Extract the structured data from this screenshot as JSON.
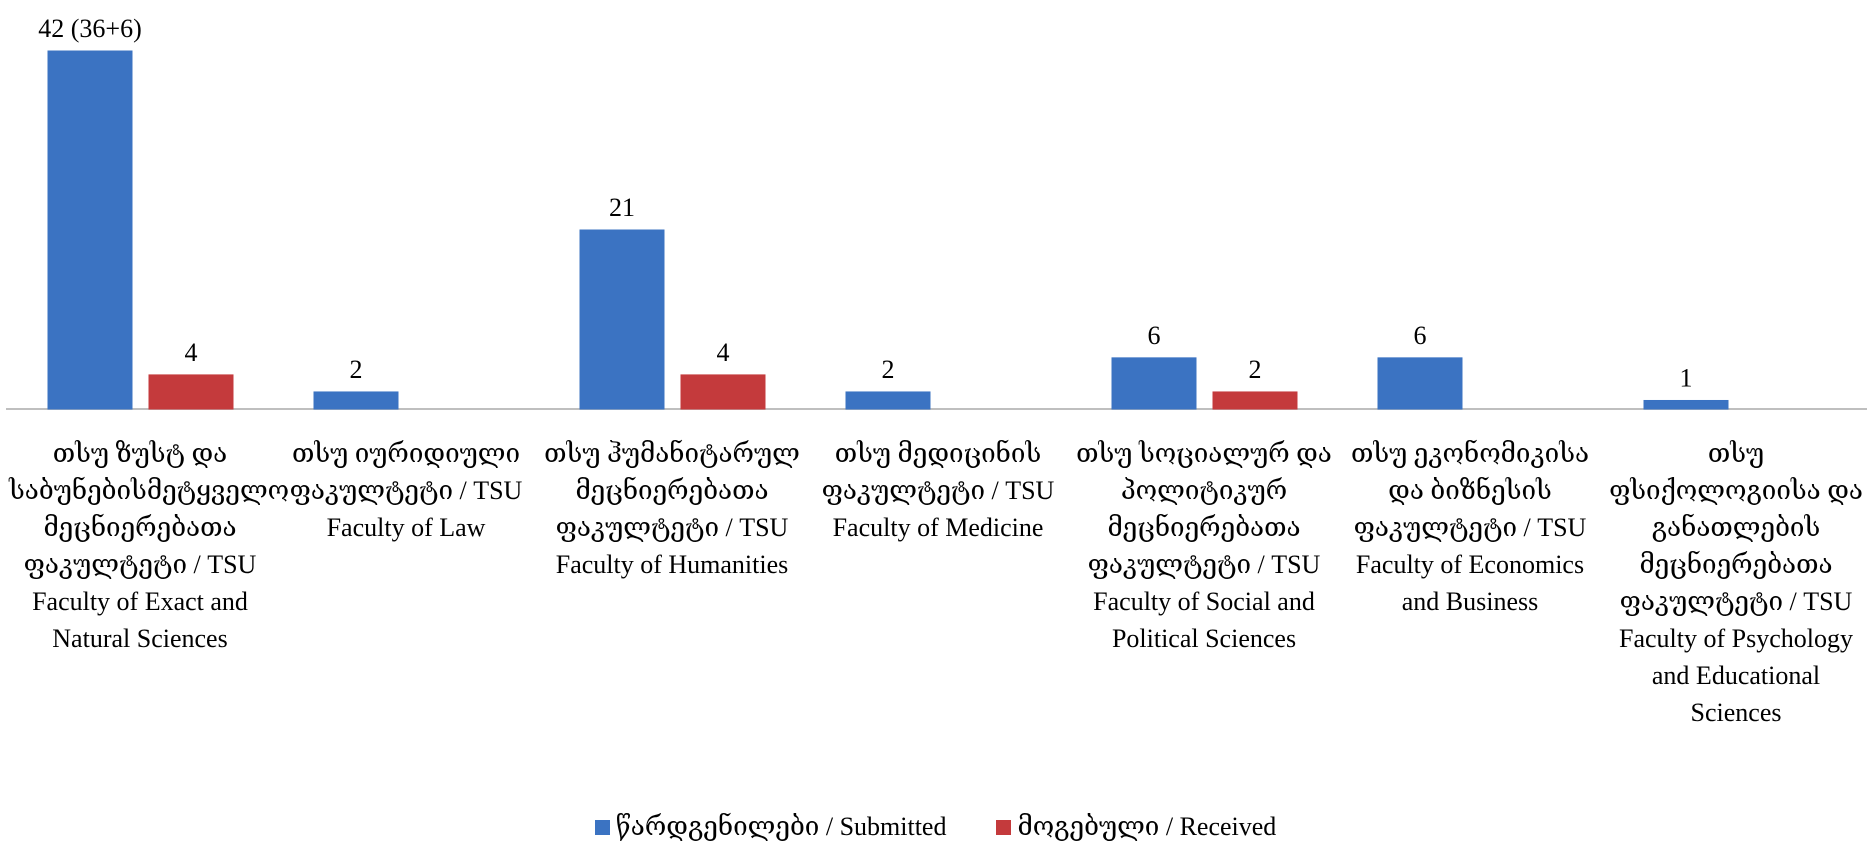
{
  "chart_data": {
    "type": "bar",
    "categories": [
      "თსუ ზუსტ და საბუნებისმეტყველო მეცნიერებათა ფაკულტეტი / TSU Faculty of Exact and Natural Sciences",
      "თსუ იურიდიული ფაკულტეტი / TSU Faculty of Law",
      "თსუ ჰუმანიტარულ მეცნიერებათა ფაკულტეტი / TSU Faculty of Humanities",
      "თსუ მედიცინის ფაკულტეტი / TSU Faculty of Medicine",
      "თსუ სოციალურ და პოლიტიკურ მეცნიერებათა ფაკულტეტი / TSU Faculty of Social and Political Sciences",
      "თსუ ეკონომიკისა და ბიზნესის ფაკულტეტი / TSU Faculty of Economics and Business",
      "თსუ ფსიქოლოგიისა და განათლების მეცნიერებათა ფაკულტეტი / TSU Faculty of Psychology and Educational Sciences"
    ],
    "series": [
      {
        "name": "წარდგენილები / Submitted",
        "color": "#3b73c2",
        "values": [
          42,
          2,
          21,
          2,
          6,
          6,
          1
        ],
        "value_labels": [
          "42 (36+6)",
          "2",
          "21",
          "2",
          "6",
          "6",
          "1"
        ]
      },
      {
        "name": "მოგებული / Received",
        "color": "#c43a3c",
        "values": [
          4,
          null,
          4,
          null,
          2,
          null,
          null
        ]
      }
    ],
    "legend": "bottom"
  }
}
